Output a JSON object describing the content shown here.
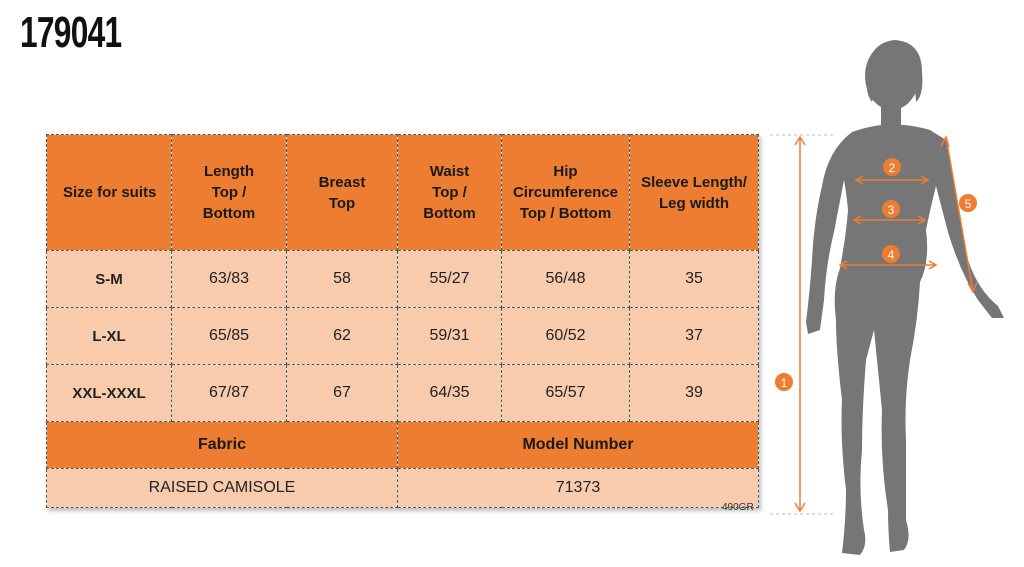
{
  "product_code": "179041",
  "table": {
    "headers": [
      "Size for suits",
      "Length\nTop /\nBottom",
      "Breast\nTop",
      "Waist\nTop /\nBottom",
      "Hip\nCircumference\nTop / Bottom",
      "Sleeve Length/\nLeg width"
    ],
    "rows": [
      [
        "S-M",
        "63/83",
        "58",
        "55/27",
        "56/48",
        "35"
      ],
      [
        "L-XL",
        "65/85",
        "62",
        "59/31",
        "60/52",
        "37"
      ],
      [
        "XXL-XXXL",
        "67/87",
        "67",
        "64/35",
        "65/57",
        "39"
      ]
    ],
    "fabric_label": "Fabric",
    "model_label": "Model Number",
    "fabric_value": "RAISED CAMISOLE",
    "model_value": "71373"
  },
  "ref_code": "490GR",
  "figure": {
    "markers": [
      "1",
      "2",
      "3",
      "4",
      "5"
    ],
    "silhouette_color": "#767676",
    "accent_color": "#ed7d31"
  }
}
